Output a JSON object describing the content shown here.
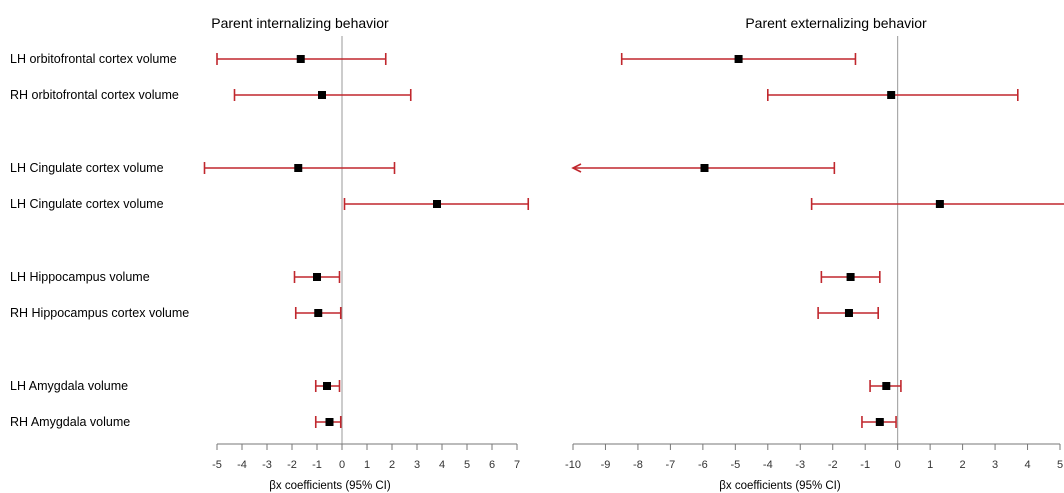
{
  "chart_data": {
    "type": "forest",
    "row_labels": [
      "LH orbitofrontal cortex volume",
      "RH orbitofrontal cortex volume",
      "LH Cingulate cortex volume",
      "LH Cingulate cortex volume",
      "LH Hippocampus volume",
      "RH Hippocampus cortex volume",
      "LH Amygdala volume",
      "RH Amygdala volume"
    ],
    "colors": {
      "ci_line": "#c0272d",
      "point": "#000000",
      "axis": "#777777",
      "zero_line": "#999999"
    },
    "panels": [
      {
        "title": "Parent internalizing behavior",
        "xlabel": "βx coefficients (95% CI)",
        "xlim": [
          -5,
          7
        ],
        "ticks": [
          -5,
          -4,
          -3,
          -2,
          -1,
          0,
          1,
          2,
          3,
          4,
          5,
          6,
          7
        ],
        "estimates": [
          {
            "beta": -1.65,
            "lower": -5.0,
            "upper": 1.75
          },
          {
            "beta": -0.8,
            "lower": -4.3,
            "upper": 2.75
          },
          {
            "beta": -1.75,
            "lower": -5.5,
            "upper": 2.1
          },
          {
            "beta": 3.8,
            "lower": 0.1,
            "upper": 7.45
          },
          {
            "beta": -1.0,
            "lower": -1.9,
            "upper": -0.1
          },
          {
            "beta": -0.95,
            "lower": -1.85,
            "upper": -0.05
          },
          {
            "beta": -0.6,
            "lower": -1.05,
            "upper": -0.1
          },
          {
            "beta": -0.5,
            "lower": -1.05,
            "upper": -0.05
          }
        ]
      },
      {
        "title": "Parent externalizing behavior",
        "xlabel": "βx coefficients (95% CI)",
        "xlim": [
          -10,
          5
        ],
        "ticks": [
          -10,
          -9,
          -8,
          -7,
          -6,
          -5,
          -4,
          -3,
          -2,
          -1,
          0,
          1,
          2,
          3,
          4,
          5
        ],
        "estimates": [
          {
            "beta": -4.9,
            "lower": -8.5,
            "upper": -1.3
          },
          {
            "beta": -0.2,
            "lower": -4.0,
            "upper": 3.7
          },
          {
            "beta": -5.95,
            "lower": -10.0,
            "upper": -1.95,
            "lower_open": true
          },
          {
            "beta": 1.3,
            "lower": -2.65,
            "upper": 5.5
          },
          {
            "beta": -1.45,
            "lower": -2.35,
            "upper": -0.55
          },
          {
            "beta": -1.5,
            "lower": -2.45,
            "upper": -0.6
          },
          {
            "beta": -0.35,
            "lower": -0.85,
            "upper": 0.1
          },
          {
            "beta": -0.55,
            "lower": -1.1,
            "upper": -0.05
          }
        ]
      }
    ]
  }
}
